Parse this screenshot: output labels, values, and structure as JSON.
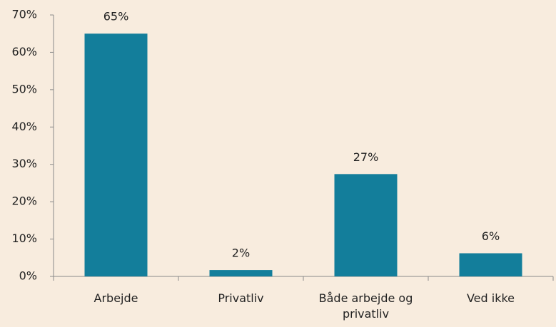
{
  "chart_data": {
    "type": "bar",
    "categories": [
      "Arbejde",
      "Privatliv",
      "Både arbejde og privatliv",
      "Ved ikke"
    ],
    "values": [
      65,
      1.7,
      27.4,
      6.2
    ],
    "value_labels": [
      "65%",
      "2%",
      "27%",
      "6%"
    ],
    "color": "#137e9b",
    "ylim": [
      0,
      70
    ],
    "yticks": [
      {
        "value": 0,
        "label": "0%"
      },
      {
        "value": 10,
        "label": "10%"
      },
      {
        "value": 20,
        "label": "20%"
      },
      {
        "value": 30,
        "label": "30%"
      },
      {
        "value": 40,
        "label": "40%"
      },
      {
        "value": 50,
        "label": "50%"
      },
      {
        "value": 60,
        "label": "60%"
      },
      {
        "value": 70,
        "label": "70%"
      }
    ],
    "grid": false
  }
}
